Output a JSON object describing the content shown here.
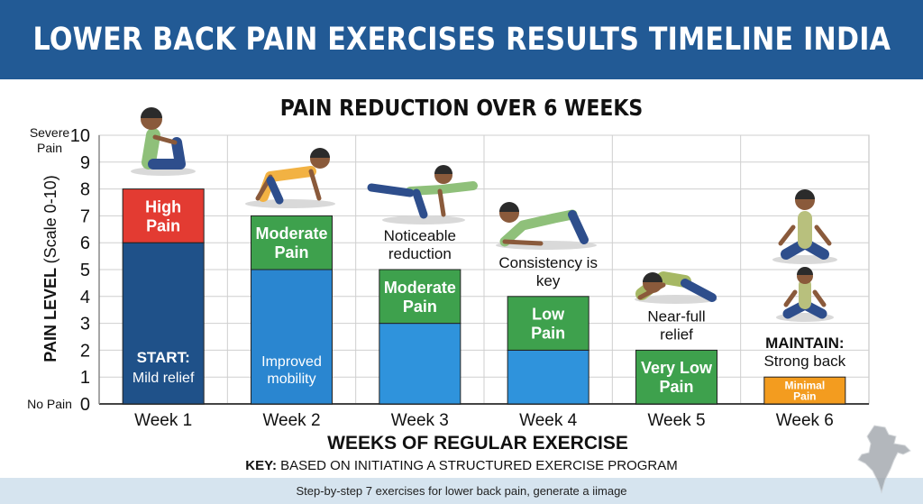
{
  "banner": {
    "title": "LOWER BACK PAIN EXERCISES RESULTS TIMELINE INDIA"
  },
  "chart_data": {
    "type": "bar",
    "title": "PAIN REDUCTION OVER 6 WEEKS",
    "xlabel": "WEEKS OF REGULAR EXERCISE",
    "ylabel": "PAIN LEVEL (Scale 0-10)",
    "ylim": [
      0,
      10
    ],
    "yticks": [
      0,
      1,
      2,
      3,
      4,
      5,
      6,
      7,
      8,
      9,
      10
    ],
    "y_top_label": "Severe Pain",
    "y_bottom_label": "No Pain",
    "grid": true,
    "categories": [
      "Week 1",
      "Week 2",
      "Week 3",
      "Week 4",
      "Week 5",
      "Week 6"
    ],
    "values": [
      8,
      7,
      5,
      4,
      2,
      1
    ],
    "colors": {
      "dark_blue": "#1f5189",
      "mid_blue": "#2a86d0",
      "light_blue": "#2f93dc",
      "red": "#e33b32",
      "green": "#3ea14d",
      "orange": "#f39c1f"
    },
    "bars": [
      {
        "week": "Week 1",
        "value": 8,
        "segments": [
          {
            "from": 0,
            "to": 6,
            "color": "#1f5189",
            "label_bold": "START:",
            "label": "Mild relief"
          },
          {
            "from": 6,
            "to": 8,
            "color": "#e33b32",
            "label_bold": "High Pain",
            "label": ""
          }
        ],
        "annotation": ""
      },
      {
        "week": "Week 2",
        "value": 7,
        "segments": [
          {
            "from": 0,
            "to": 5,
            "color": "#2a86d0",
            "label_bold": "",
            "label": "Improved mobility"
          },
          {
            "from": 5,
            "to": 7,
            "color": "#3ea14d",
            "label_bold": "Moderate Pain",
            "label": ""
          }
        ],
        "annotation": ""
      },
      {
        "week": "Week 3",
        "value": 5,
        "segments": [
          {
            "from": 0,
            "to": 3,
            "color": "#2f93dc",
            "label_bold": "",
            "label": ""
          },
          {
            "from": 3,
            "to": 5,
            "color": "#3ea14d",
            "label_bold": "Moderate Pain",
            "label": ""
          }
        ],
        "annotation": "Noticeable reduction"
      },
      {
        "week": "Week 4",
        "value": 4,
        "segments": [
          {
            "from": 0,
            "to": 2,
            "color": "#2f93dc",
            "label_bold": "",
            "label": ""
          },
          {
            "from": 2,
            "to": 4,
            "color": "#3ea14d",
            "label_bold": "Low Pain",
            "label": ""
          }
        ],
        "annotation": "Consistency is key"
      },
      {
        "week": "Week 5",
        "value": 2,
        "segments": [
          {
            "from": 0,
            "to": 2,
            "color": "#3ea14d",
            "label_bold": "Very Low Pain",
            "label": ""
          }
        ],
        "annotation": "Near-full relief"
      },
      {
        "week": "Week 6",
        "value": 1,
        "segments": [
          {
            "from": 0,
            "to": 1,
            "color": "#f39c1f",
            "label_bold": "Minimal Pain",
            "label": ""
          }
        ],
        "annotation": "",
        "annotation_bold": "MAINTAIN:",
        "annotation_sub": "Strong back"
      }
    ]
  },
  "key": {
    "prefix": "KEY:",
    "text": "BASED ON INITIATING A STRUCTURED EXERCISE PROGRAM"
  },
  "caption": "Step-by-step 7 exercises for lower back pain, generate a iimage"
}
